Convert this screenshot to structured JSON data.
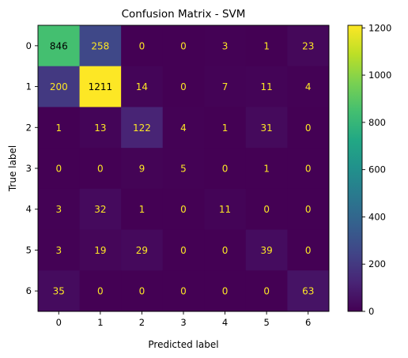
{
  "chart_data": {
    "type": "heatmap",
    "title": "Confusion Matrix - SVM",
    "xlabel": "Predicted label",
    "ylabel": "True label",
    "x_categories": [
      "0",
      "1",
      "2",
      "3",
      "4",
      "5",
      "6"
    ],
    "y_categories": [
      "0",
      "1",
      "2",
      "3",
      "4",
      "5",
      "6"
    ],
    "matrix": [
      [
        846,
        258,
        0,
        0,
        3,
        1,
        23
      ],
      [
        200,
        1211,
        14,
        0,
        7,
        11,
        4
      ],
      [
        1,
        13,
        122,
        4,
        1,
        31,
        0
      ],
      [
        0,
        0,
        9,
        5,
        0,
        1,
        0
      ],
      [
        3,
        32,
        1,
        0,
        11,
        0,
        0
      ],
      [
        3,
        19,
        29,
        0,
        0,
        39,
        0
      ],
      [
        35,
        0,
        0,
        0,
        0,
        0,
        63
      ]
    ],
    "colormap": "viridis",
    "value_range": [
      0,
      1211
    ],
    "colorbar_ticks": [
      "0",
      "200",
      "400",
      "600",
      "800",
      "1000",
      "1200"
    ],
    "colorbar_tick_values": [
      0,
      200,
      400,
      600,
      800,
      1000,
      1200
    ],
    "text_color_light": "#fde725",
    "text_color_dark": "#000000",
    "grid": false
  }
}
